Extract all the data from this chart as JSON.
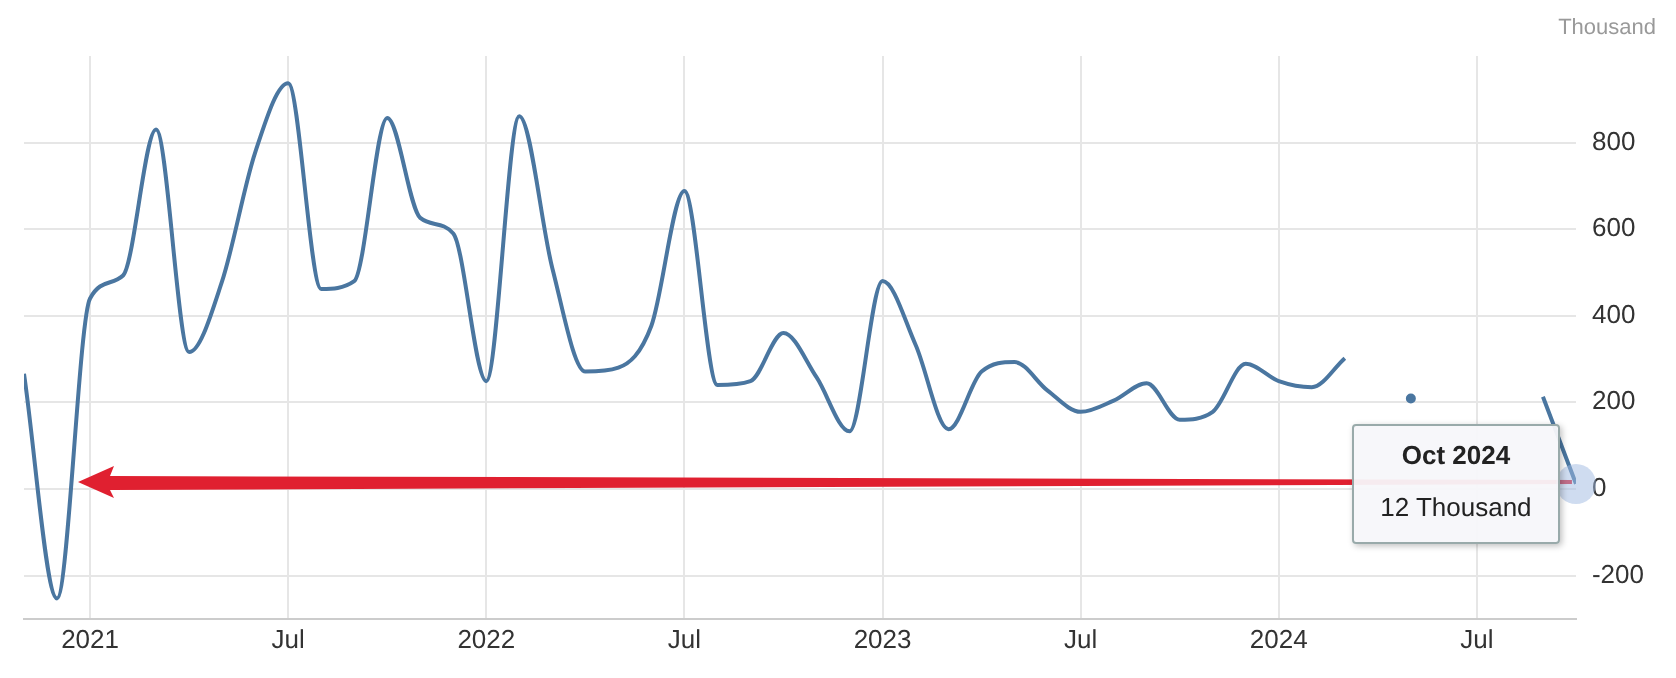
{
  "chart_data": {
    "type": "line",
    "ylabel": "Thousand",
    "x": [
      "2020-11",
      "2020-12",
      "2021-01",
      "2021-02",
      "2021-03",
      "2021-04",
      "2021-05",
      "2021-06",
      "2021-07",
      "2021-08",
      "2021-09",
      "2021-10",
      "2021-11",
      "2021-12",
      "2022-01",
      "2022-02",
      "2022-03",
      "2022-04",
      "2022-05",
      "2022-06",
      "2022-07",
      "2022-08",
      "2022-09",
      "2022-10",
      "2022-11",
      "2022-12",
      "2023-01",
      "2023-02",
      "2023-03",
      "2023-04",
      "2023-05",
      "2023-06",
      "2023-07",
      "2023-08",
      "2023-09",
      "2023-10",
      "2023-11",
      "2023-12",
      "2024-01",
      "2024-02",
      "2024-03",
      "2024-04",
      "2024-05",
      "2024-06",
      "2024-07",
      "2024-08",
      "2024-09",
      "2024-10"
    ],
    "series": [
      {
        "color": "#4a76a0",
        "values": [
          266,
          -253,
          440,
          493,
          830,
          316,
          480,
          777,
          937,
          462,
          480,
          857,
          626,
          590,
          249,
          861,
          510,
          271,
          280,
          377,
          688,
          240,
          249,
          360,
          258,
          133,
          480,
          333,
          138,
          271,
          293,
          227,
          178,
          204,
          244,
          160,
          178,
          289,
          249,
          235,
          302,
          null,
          209,
          null,
          null,
          null,
          213,
          12
        ]
      }
    ],
    "xlim": [
      "2020-11",
      "2024-10"
    ],
    "xticks": [
      {
        "value": "2021-01",
        "label": "2021"
      },
      {
        "value": "2021-07",
        "label": "Jul"
      },
      {
        "value": "2022-01",
        "label": "2022"
      },
      {
        "value": "2022-07",
        "label": "Jul"
      },
      {
        "value": "2023-01",
        "label": "2023"
      },
      {
        "value": "2023-07",
        "label": "Jul"
      },
      {
        "value": "2024-01",
        "label": "2024"
      },
      {
        "value": "2024-07",
        "label": "Jul"
      }
    ],
    "ylim": [
      -300,
      1000
    ],
    "yticks": [
      -200,
      0,
      200,
      400,
      600,
      800
    ],
    "grid": true,
    "legend": false,
    "marker": "none",
    "line_style": "solid",
    "annotations": [
      {
        "text": "Oct 2024",
        "x": "2024-10",
        "y": 12
      },
      {
        "text": "12 Thousand",
        "x": "2024-10",
        "y": 12
      }
    ]
  }
}
